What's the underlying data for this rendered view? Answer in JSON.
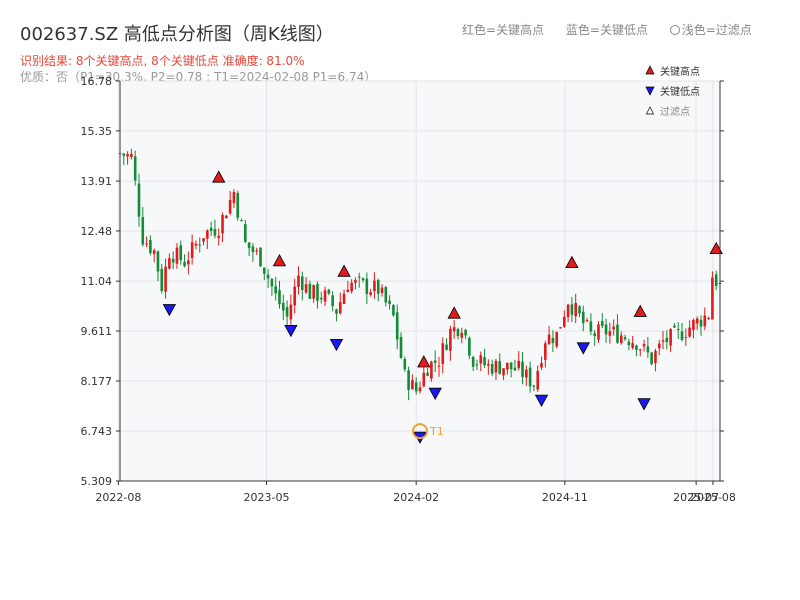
{
  "header": {
    "title": "002637.SZ 高低点分析图（周K线图）",
    "legend_red": "红色=关键高点",
    "legend_blue": "蓝色=关键低点",
    "legend_light": "浅色=过滤点",
    "result_line": "识别结果: 8个关键高点, 8个关键低点  准确度: 81.0%",
    "quality_line": "优质：否（P1=30.3%, P2=0.78 ; T1=2024-02-08 P1=6.74）"
  },
  "colors": {
    "up": "#e01b1b",
    "down": "#138a36",
    "high_marker": "#e01b1b",
    "low_marker": "#1a1aee",
    "t1_ring": "#f0a030",
    "plot_bg": "#f7f8fa",
    "grid": "#e2e4e8"
  },
  "chart_data": {
    "type": "candlestick",
    "frequency": "weekly",
    "y_ticks": [
      "16.78",
      "15.35",
      "13.91",
      "12.48",
      "11.04",
      "9.611",
      "8.177",
      "6.743",
      "5.309"
    ],
    "ylim": [
      5.309,
      16.78
    ],
    "x_ticks": [
      "2022-08",
      "2023-05",
      "2024-02",
      "2024-11",
      "2025-07",
      "2025-08"
    ],
    "x_range": [
      "2022-08-04",
      "2025-08-14"
    ],
    "legend": {
      "high": "关键高点",
      "low": "关键低点",
      "filtered": "过滤点"
    },
    "t1_label": "T1",
    "t1": {
      "date": "2024-02-08",
      "price": 6.74
    },
    "price_path": [
      [
        "2022-08-04",
        14.7
      ],
      [
        "2022-08-25",
        14.6
      ],
      [
        "2022-09-15",
        12.3
      ],
      [
        "2022-10-06",
        11.9
      ],
      [
        "2022-10-20",
        10.9
      ],
      [
        "2022-11-03",
        11.9
      ],
      [
        "2022-12-01",
        11.6
      ],
      [
        "2023-01-05",
        12.4
      ],
      [
        "2023-02-02",
        12.6
      ],
      [
        "2023-03-02",
        13.6
      ],
      [
        "2023-03-23",
        12.1
      ],
      [
        "2023-04-20",
        11.7
      ],
      [
        "2023-05-18",
        10.6
      ],
      [
        "2023-06-08",
        10.0
      ],
      [
        "2023-06-29",
        11.2
      ],
      [
        "2023-07-20",
        10.7
      ],
      [
        "2023-08-17",
        10.6
      ],
      [
        "2023-09-07",
        10.2
      ],
      [
        "2023-09-28",
        11.0
      ],
      [
        "2023-10-26",
        10.9
      ],
      [
        "2023-11-23",
        10.8
      ],
      [
        "2023-12-21",
        10.0
      ],
      [
        "2024-01-11",
        8.3
      ],
      [
        "2024-02-01",
        7.9
      ],
      [
        "2024-02-22",
        8.6
      ],
      [
        "2024-03-14",
        8.8
      ],
      [
        "2024-04-04",
        9.6
      ],
      [
        "2024-04-25",
        9.8
      ],
      [
        "2024-05-16",
        8.8
      ],
      [
        "2024-06-13",
        8.6
      ],
      [
        "2024-07-11",
        8.6
      ],
      [
        "2024-08-08",
        8.5
      ],
      [
        "2024-09-05",
        8.1
      ],
      [
        "2024-09-26",
        9.4
      ],
      [
        "2024-10-17",
        9.5
      ],
      [
        "2024-11-07",
        10.5
      ],
      [
        "2024-11-28",
        10.0
      ],
      [
        "2024-12-19",
        9.5
      ],
      [
        "2025-01-16",
        9.6
      ],
      [
        "2025-02-13",
        9.5
      ],
      [
        "2025-03-13",
        9.3
      ],
      [
        "2025-04-10",
        8.8
      ],
      [
        "2025-05-01",
        9.3
      ],
      [
        "2025-05-29",
        9.5
      ],
      [
        "2025-06-26",
        9.8
      ],
      [
        "2025-07-24",
        10.1
      ],
      [
        "2025-07-31",
        11.2
      ],
      [
        "2025-08-14",
        10.9
      ]
    ],
    "key_highs": [
      {
        "date": "2023-02-02",
        "price": 13.85
      },
      {
        "date": "2023-05-25",
        "price": 11.45
      },
      {
        "date": "2023-09-21",
        "price": 11.15
      },
      {
        "date": "2024-02-15",
        "price": 8.55
      },
      {
        "date": "2024-04-11",
        "price": 9.95
      },
      {
        "date": "2024-11-14",
        "price": 11.4
      },
      {
        "date": "2025-03-20",
        "price": 10.0
      },
      {
        "date": "2025-08-07",
        "price": 11.8
      }
    ],
    "key_lows": [
      {
        "date": "2022-11-03",
        "price": 10.4
      },
      {
        "date": "2023-06-15",
        "price": 9.8
      },
      {
        "date": "2023-09-07",
        "price": 9.4
      },
      {
        "date": "2024-02-08",
        "price": 6.74
      },
      {
        "date": "2024-03-07",
        "price": 8.0
      },
      {
        "date": "2024-09-19",
        "price": 7.8
      },
      {
        "date": "2024-12-05",
        "price": 9.3
      },
      {
        "date": "2025-03-27",
        "price": 7.7
      }
    ]
  }
}
